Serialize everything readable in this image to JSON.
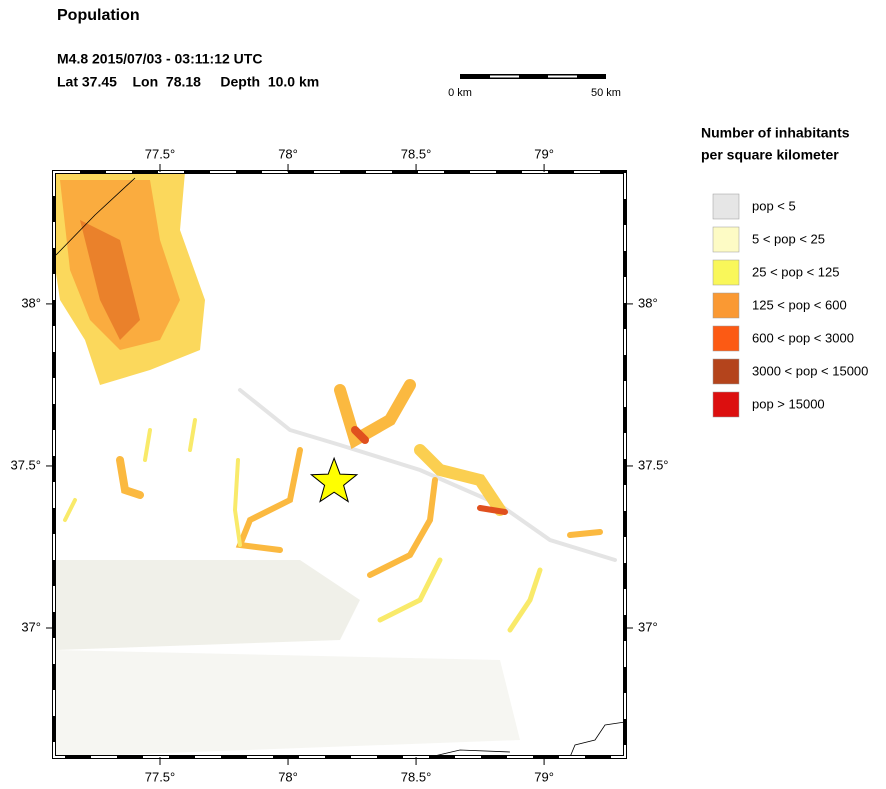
{
  "header": {
    "title": "Population",
    "event_line": "M4.8  2015/07/03 - 03:11:12 UTC",
    "location_line": "Lat 37.45    Lon  78.18     Depth  10.0 km"
  },
  "scale_bar": {
    "labels": [
      "0 km",
      "50 km"
    ]
  },
  "map": {
    "xlim": [
      77.086,
      79.316
    ],
    "ylim": [
      36.602,
      38.407
    ],
    "xticks": [
      {
        "value": 77.5,
        "label": "77.5°"
      },
      {
        "value": 78,
        "label": "78°"
      },
      {
        "value": 78.5,
        "label": "78.5°"
      },
      {
        "value": 79,
        "label": "79°"
      }
    ],
    "yticks": [
      {
        "value": 37,
        "label": "37°"
      },
      {
        "value": 37.5,
        "label": "37.5°"
      },
      {
        "value": 38,
        "label": "38°"
      }
    ],
    "epicenter": {
      "lon": 78.18,
      "lat": 37.45,
      "color": "#ffff00"
    }
  },
  "legend": {
    "title": [
      "Number of inhabitants",
      "per square kilometer"
    ],
    "entries": [
      {
        "label": "pop < 5",
        "color": "#e6e6e6"
      },
      {
        "label": "5 < pop < 25",
        "color": "#fdfbc5"
      },
      {
        "label": "25 < pop < 125",
        "color": "#f9f75a"
      },
      {
        "label": "125 < pop < 600",
        "color": "#fa9933"
      },
      {
        "label": "600 < pop < 3000",
        "color": "#fc5a14"
      },
      {
        "label": "3000 < pop < 15000",
        "color": "#b4441c"
      },
      {
        "label": "pop > 15000",
        "color": "#dc0f0f"
      }
    ]
  }
}
